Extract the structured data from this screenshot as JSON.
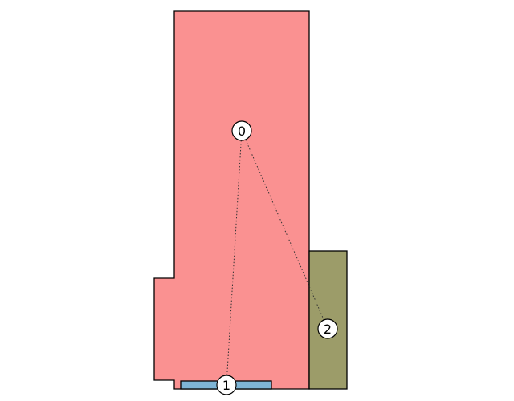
{
  "diagram": {
    "rooms": [
      {
        "id": "room-main",
        "color": "#fa9191"
      },
      {
        "id": "room-bottom",
        "color": "#7eb5d6"
      },
      {
        "id": "room-right",
        "color": "#9c9c69"
      }
    ],
    "nodes": [
      {
        "id": "node-0",
        "label": "0"
      },
      {
        "id": "node-1",
        "label": "1"
      },
      {
        "id": "node-2",
        "label": "2"
      }
    ],
    "edges": [
      {
        "from": "0",
        "to": "1"
      },
      {
        "from": "0",
        "to": "2"
      }
    ]
  }
}
